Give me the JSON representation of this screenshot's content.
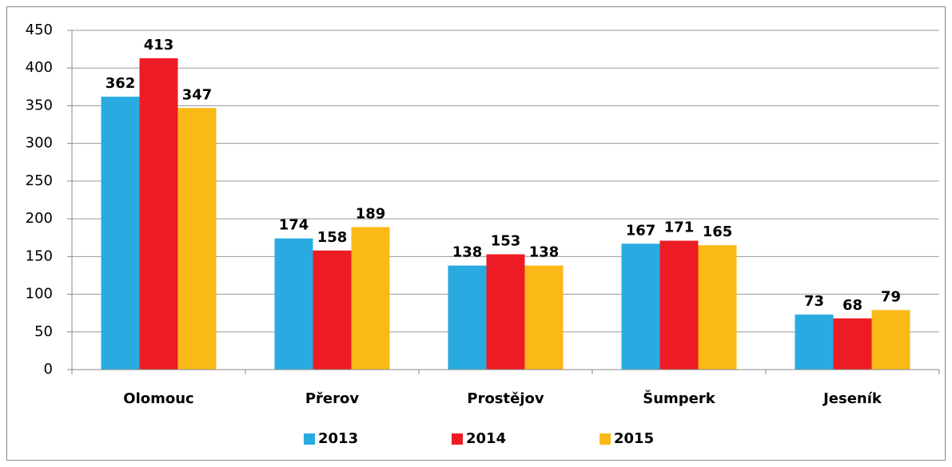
{
  "chart_data": {
    "type": "bar",
    "categories": [
      "Olomouc",
      "Přerov",
      "Prostějov",
      "Šumperk",
      "Jeseník"
    ],
    "series": [
      {
        "name": "2013",
        "color": "#29abe2",
        "values": [
          362,
          174,
          138,
          167,
          73
        ]
      },
      {
        "name": "2014",
        "color": "#ed1c24",
        "values": [
          413,
          158,
          153,
          171,
          68
        ]
      },
      {
        "name": "2015",
        "color": "#fbb917",
        "values": [
          347,
          189,
          138,
          165,
          79
        ]
      }
    ],
    "ylim": [
      0,
      450
    ],
    "yticks": [
      0,
      50,
      100,
      150,
      200,
      250,
      300,
      350,
      400,
      450
    ],
    "grid": true,
    "legend": "bottom"
  }
}
